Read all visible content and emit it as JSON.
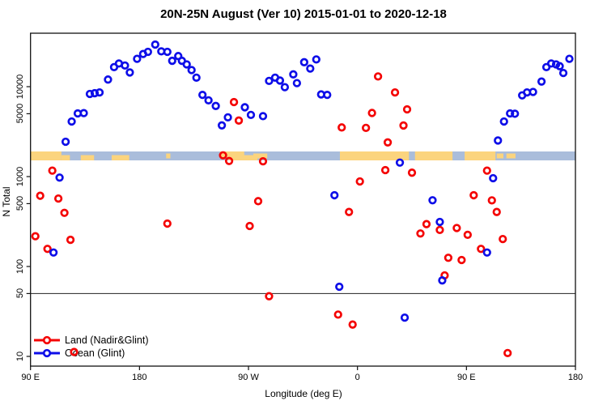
{
  "title": "20N-25N August (Ver 10)   2015-01-01 to 2020-12-18",
  "x_axis": {
    "label": "Longitude (deg E)",
    "ticks": [
      {
        "lon": 90,
        "label": "90 E"
      },
      {
        "lon": 180,
        "label": "180"
      },
      {
        "lon": 270,
        "label": "90 W"
      },
      {
        "lon": 360,
        "label": "0"
      },
      {
        "lon": 450,
        "label": "90 E"
      },
      {
        "lon": 540,
        "label": "180"
      }
    ]
  },
  "y_axis": {
    "label": "N Total",
    "ticks": [
      10,
      50,
      100,
      500,
      1000,
      5000,
      10000
    ]
  },
  "legend": {
    "items": [
      {
        "label": "Land (Nadir&Glint)",
        "color": "#F40404"
      },
      {
        "label": "Ocean (Glint)",
        "color": "#0E0EE8"
      }
    ]
  },
  "chart_data": {
    "type": "scatter",
    "title": "20N-25N August (Ver 10)   2015-01-01 to 2020-12-18",
    "xlabel": "Longitude (deg E)",
    "ylabel": "N Total",
    "x_unit": "continuous longitude deg E, 90 to 540 (wraps through 180, 90W, 0, 90E, 180)",
    "xlim": [
      90,
      540
    ],
    "y_scale": "log",
    "ylim": [
      8,
      39000
    ],
    "grid": false,
    "reference_line_n": 50,
    "legend_position": "bottom-left",
    "map_strip": {
      "note": "thin 20N-25N latitude world-map band drawn across plot",
      "n_range": [
        1300,
        1900
      ],
      "ocean_color": "#AABDDB",
      "land_color": "#FBD47E",
      "land_segments": [
        {
          "kind": "full",
          "lon": [
            90,
            115.5
          ]
        },
        {
          "kind": "bottom",
          "lon": [
            115.5,
            122.5
          ]
        },
        {
          "kind": "bottom",
          "lon": [
            131.5,
            142.5
          ]
        },
        {
          "kind": "bottom",
          "lon": [
            157,
            171.5
          ]
        },
        {
          "kind": "mid",
          "lon": [
            202,
            205.5
          ]
        },
        {
          "kind": "top",
          "lon": [
            246.5,
            266.5
          ]
        },
        {
          "kind": "bottom",
          "lon": [
            253.5,
            277.5
          ]
        },
        {
          "kind": "mid",
          "lon": [
            274,
            285.5
          ]
        },
        {
          "kind": "full",
          "lon": [
            345.5,
            402.5
          ]
        },
        {
          "kind": "full",
          "lon": [
            407.5,
            438.5
          ]
        },
        {
          "kind": "full",
          "lon": [
            448.5,
            474
          ]
        },
        {
          "kind": "mid",
          "lon": [
            475,
            480.5
          ]
        },
        {
          "kind": "mid",
          "lon": [
            483,
            490.5
          ]
        }
      ]
    },
    "series": [
      {
        "name": "Land (Nadir&Glint)",
        "color": "#F40404",
        "marker": "open-circle",
        "points": [
          [
            258,
            6740
          ],
          [
            262,
            4200
          ],
          [
            249,
            1725
          ],
          [
            254,
            1490
          ],
          [
            282,
            1480
          ],
          [
            108,
            1165
          ],
          [
            98,
            612
          ],
          [
            113,
            570
          ],
          [
            118,
            395
          ],
          [
            94,
            217
          ],
          [
            123,
            198
          ],
          [
            104,
            157
          ],
          [
            203,
            300
          ],
          [
            271,
            282
          ],
          [
            278,
            533
          ],
          [
            287,
            46.7
          ],
          [
            347,
            3520
          ],
          [
            362,
            883
          ],
          [
            353,
            404
          ],
          [
            344,
            29.2
          ],
          [
            356,
            22.6
          ],
          [
            367,
            3480
          ],
          [
            372,
            5100
          ],
          [
            377,
            13000
          ],
          [
            383,
            1180
          ],
          [
            385,
            2400
          ],
          [
            391,
            8630
          ],
          [
            401,
            5590
          ],
          [
            398,
            3700
          ],
          [
            405,
            1105
          ],
          [
            467,
            1165
          ],
          [
            456,
            620
          ],
          [
            471,
            544
          ],
          [
            475,
            404
          ],
          [
            417,
            296
          ],
          [
            428,
            255
          ],
          [
            412,
            233
          ],
          [
            442,
            268
          ],
          [
            451,
            225
          ],
          [
            480,
            202
          ],
          [
            462,
            157
          ],
          [
            435,
            125
          ],
          [
            446,
            118
          ],
          [
            432,
            79.6
          ],
          [
            484,
            10.9
          ],
          [
            126,
            11.2
          ]
        ]
      },
      {
        "name": "Ocean (Glint)",
        "color": "#0E0EE8",
        "marker": "open-circle",
        "points": [
          [
            119,
            2440
          ],
          [
            124,
            4100
          ],
          [
            129,
            5040
          ],
          [
            134,
            5080
          ],
          [
            139,
            8300
          ],
          [
            143,
            8460
          ],
          [
            147,
            8630
          ],
          [
            154,
            12000
          ],
          [
            159,
            16500
          ],
          [
            163,
            18100
          ],
          [
            168,
            17200
          ],
          [
            172,
            14400
          ],
          [
            178,
            20400
          ],
          [
            183,
            23100
          ],
          [
            187,
            24400
          ],
          [
            193,
            29400
          ],
          [
            198,
            24700
          ],
          [
            203,
            24400
          ],
          [
            207,
            19400
          ],
          [
            212,
            21900
          ],
          [
            215,
            19400
          ],
          [
            219,
            17700
          ],
          [
            223,
            15300
          ],
          [
            227,
            12600
          ],
          [
            232,
            8100
          ],
          [
            237,
            7050
          ],
          [
            243,
            6100
          ],
          [
            248,
            3710
          ],
          [
            253,
            4560
          ],
          [
            267,
            5900
          ],
          [
            272,
            4850
          ],
          [
            282,
            4700
          ],
          [
            287,
            11600
          ],
          [
            292,
            12600
          ],
          [
            296,
            11700
          ],
          [
            300,
            9870
          ],
          [
            307,
            13700
          ],
          [
            310,
            10950
          ],
          [
            316,
            18700
          ],
          [
            321,
            15900
          ],
          [
            326,
            20100
          ],
          [
            330,
            8200
          ],
          [
            335,
            8100
          ],
          [
            341,
            620
          ],
          [
            345,
            59.5
          ],
          [
            395,
            1430
          ],
          [
            422,
            545
          ],
          [
            428,
            313
          ],
          [
            430,
            70
          ],
          [
            399,
            27
          ],
          [
            467,
            143
          ],
          [
            472,
            960
          ],
          [
            476,
            2520
          ],
          [
            481,
            4100
          ],
          [
            486,
            5040
          ],
          [
            490,
            5000
          ],
          [
            496,
            8000
          ],
          [
            500,
            8630
          ],
          [
            505,
            8740
          ],
          [
            512,
            11400
          ],
          [
            516,
            16500
          ],
          [
            520,
            18100
          ],
          [
            524,
            17700
          ],
          [
            527,
            16900
          ],
          [
            530,
            14200
          ],
          [
            535,
            20400
          ],
          [
            114,
            975
          ],
          [
            109,
            143
          ]
        ]
      }
    ]
  },
  "colors": {
    "background": "#ffffff",
    "box": "#111111",
    "reference_line": "#3C3C3C",
    "land_points": "#F40404",
    "ocean_points": "#0E0EE8",
    "map_ocean": "#AABDDB",
    "map_land": "#FBD47E"
  }
}
